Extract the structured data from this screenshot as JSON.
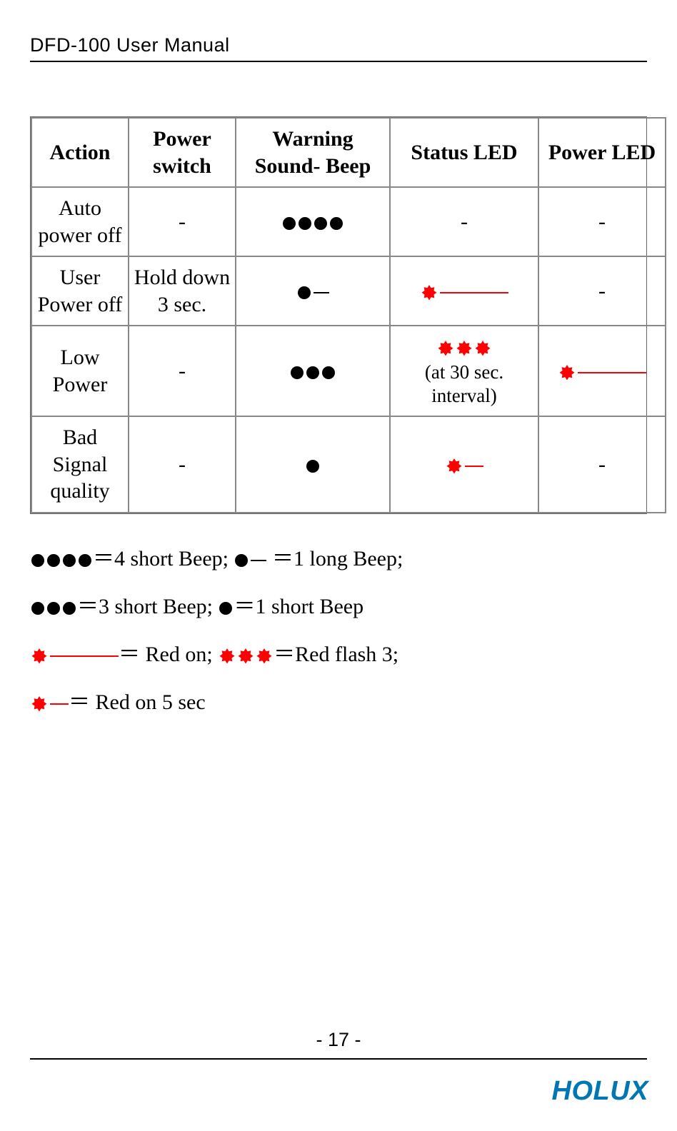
{
  "doc_title": "DFD-100 User Manual",
  "page_number": "- 17 -",
  "brand": "HOLUX",
  "colors": {
    "red": "#ff0000",
    "black": "#000000",
    "brand": "#0077b3"
  },
  "table": {
    "headers": [
      "Action",
      "Power switch",
      "Warning Sound- Beep",
      "Status LED",
      "Power LED"
    ],
    "rows": [
      {
        "action": "Auto power off",
        "power_switch": "-",
        "beep": {
          "type": "dots",
          "count": 4
        },
        "status_led": {
          "type": "dash"
        },
        "power_led": {
          "type": "dash"
        }
      },
      {
        "action": "User Power off",
        "power_switch": "Hold down 3 sec.",
        "beep": {
          "type": "dot_tail",
          "tail": "short"
        },
        "status_led": {
          "type": "star_line",
          "line": "long"
        },
        "power_led": {
          "type": "dash"
        }
      },
      {
        "action": "Low Power",
        "power_switch": "-",
        "beep": {
          "type": "dots",
          "count": 3
        },
        "status_led": {
          "type": "stars_note",
          "count": 3,
          "note": "(at 30 sec. interval)"
        },
        "power_led": {
          "type": "star_line",
          "line": "long"
        }
      },
      {
        "action": "Bad Signal quality",
        "power_switch": "-",
        "beep": {
          "type": "dots",
          "count": 1
        },
        "status_led": {
          "type": "star_line",
          "line": "short"
        },
        "power_led": {
          "type": "dash"
        }
      }
    ]
  },
  "legend": {
    "line1_a": "＝4 short Beep; ",
    "line1_b": "＝1 long Beep;",
    "line2_a": "＝3 short Beep; ",
    "line2_b": "＝1 short Beep",
    "line3_a": "＝ Red on; ",
    "line3_b": "＝Red flash 3;",
    "line4": "＝ Red on 5 sec"
  }
}
